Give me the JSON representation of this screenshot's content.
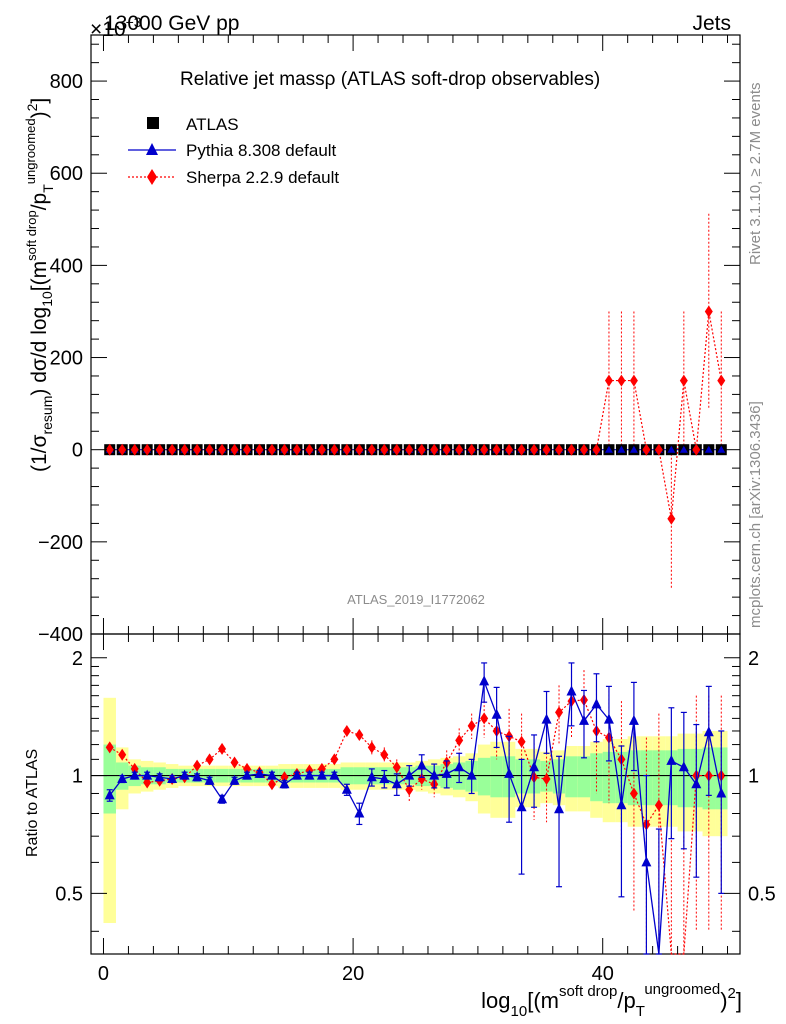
{
  "header": {
    "energy_label": "13000 GeV pp",
    "process_label": "Jets",
    "exponent_label": "×10",
    "exponent_power": "−3"
  },
  "side": {
    "rivet_label": "Rivet 3.1.10, ≥ 2.7M events",
    "mcplots_label": "mcplots.cern.ch [arXiv:1306.3436]"
  },
  "chart_data": {
    "type": "scatter",
    "title": "Relative jet massρ (ATLAS soft-drop observables)",
    "analysis_id": "ATLAS_2019_I1772062",
    "ylabel": "(1/σresum) dσ/d log10[(m soft drop/pT ungroomed)2]",
    "ylabel_parts": {
      "a": "(1/σ",
      "b": "resum",
      "c": ") dσ/d log",
      "d": "10",
      "e": "[(m",
      "f": "soft drop",
      "g": "/p",
      "h": "T",
      "i": "ungroomed",
      "j": ")",
      "k": "2",
      "l": "]"
    },
    "xlabel_parts": {
      "a": "log",
      "b": "10",
      "c": "[(m",
      "d": "soft drop",
      "e": "/p",
      "f": "T",
      "g": "ungroomed",
      "h": ")",
      "i": "2",
      "j": "]"
    },
    "ratio_ylabel": "Ratio to ATLAS",
    "xlim": [
      -1,
      51
    ],
    "ylim": [
      -400,
      900
    ],
    "ratio_ylim": [
      0.35,
      2.3
    ],
    "xticks": [
      0,
      20,
      40
    ],
    "yticks": [
      -400,
      -200,
      0,
      200,
      400,
      600,
      800
    ],
    "ratio_yticks": [
      0.5,
      1,
      2
    ],
    "x": [
      0.5,
      1.5,
      2.5,
      3.5,
      4.5,
      5.5,
      6.5,
      7.5,
      8.5,
      9.5,
      10.5,
      11.5,
      12.5,
      13.5,
      14.5,
      15.5,
      16.5,
      17.5,
      18.5,
      19.5,
      20.5,
      21.5,
      22.5,
      23.5,
      24.5,
      25.5,
      26.5,
      27.5,
      28.5,
      29.5,
      30.5,
      31.5,
      32.5,
      33.5,
      34.5,
      35.5,
      36.5,
      37.5,
      38.5,
      39.5,
      40.5,
      41.5,
      42.5,
      43.5,
      44.5,
      45.5,
      46.5,
      47.5,
      48.5,
      49.5
    ],
    "legend": [
      {
        "name": "ATLAS",
        "marker": "square",
        "color": "#000000"
      },
      {
        "name": "Pythia 8.308 default",
        "marker": "triangle",
        "color": "#0000cc"
      },
      {
        "name": "Sherpa 2.2.9 default",
        "marker": "diamond",
        "color": "#ff0000"
      }
    ],
    "series": [
      {
        "name": "ATLAS",
        "values": [
          0,
          0,
          0,
          0,
          0,
          0,
          0,
          0,
          0,
          0,
          0,
          0,
          0,
          0,
          0,
          0,
          0,
          0,
          0,
          0,
          0,
          0,
          0,
          0,
          0,
          0,
          0,
          0,
          0,
          0,
          0,
          0,
          0,
          0,
          0,
          0,
          0,
          0,
          0,
          0,
          0,
          0,
          0,
          0,
          0,
          0,
          0,
          0,
          0,
          0
        ]
      },
      {
        "name": "Pythia 8.308 default",
        "values": [
          0,
          0,
          0,
          0,
          0,
          0,
          0,
          0,
          0,
          0,
          0,
          0,
          0,
          0,
          0,
          0,
          0,
          0,
          0,
          0,
          0,
          0,
          0,
          0,
          0,
          0,
          0,
          0,
          0,
          0,
          0,
          0,
          0,
          0,
          0,
          0,
          0,
          0,
          0,
          0,
          0,
          0,
          0,
          0,
          0,
          0,
          0,
          0,
          0,
          0
        ]
      },
      {
        "name": "Sherpa 2.2.9 default",
        "values": [
          0,
          0,
          0,
          0,
          0,
          0,
          0,
          0,
          0,
          0,
          0,
          0,
          0,
          0,
          0,
          0,
          0,
          0,
          0,
          0,
          0,
          0,
          0,
          0,
          0,
          0,
          0,
          0,
          0,
          0,
          0,
          0,
          0,
          0,
          0,
          0,
          0,
          0,
          0,
          0,
          150,
          150,
          150,
          0,
          0,
          -150,
          150,
          0,
          300,
          150
        ],
        "errors": [
          0,
          0,
          0,
          0,
          0,
          0,
          0,
          0,
          0,
          0,
          0,
          0,
          0,
          0,
          0,
          0,
          0,
          0,
          0,
          0,
          0,
          0,
          0,
          0,
          0,
          0,
          0,
          0,
          0,
          0,
          0,
          0,
          0,
          0,
          0,
          0,
          0,
          0,
          0,
          0,
          150,
          150,
          150,
          0,
          0,
          150,
          150,
          0,
          212,
          150
        ]
      }
    ],
    "ratio": {
      "band_green": [
        0.2,
        0.08,
        0.06,
        0.05,
        0.05,
        0.04,
        0.04,
        0.04,
        0.04,
        0.04,
        0.04,
        0.04,
        0.04,
        0.04,
        0.04,
        0.04,
        0.04,
        0.04,
        0.04,
        0.05,
        0.05,
        0.05,
        0.05,
        0.05,
        0.05,
        0.06,
        0.06,
        0.07,
        0.08,
        0.09,
        0.11,
        0.12,
        0.12,
        0.1,
        0.1,
        0.09,
        0.1,
        0.12,
        0.12,
        0.14,
        0.15,
        0.15,
        0.16,
        0.16,
        0.16,
        0.16,
        0.17,
        0.17,
        0.18,
        0.18
      ],
      "band_yellow": [
        0.58,
        0.18,
        0.1,
        0.09,
        0.08,
        0.07,
        0.06,
        0.06,
        0.06,
        0.06,
        0.06,
        0.06,
        0.06,
        0.06,
        0.07,
        0.07,
        0.07,
        0.07,
        0.07,
        0.08,
        0.08,
        0.08,
        0.08,
        0.08,
        0.08,
        0.09,
        0.1,
        0.11,
        0.12,
        0.14,
        0.2,
        0.22,
        0.22,
        0.17,
        0.17,
        0.15,
        0.16,
        0.19,
        0.19,
        0.22,
        0.24,
        0.24,
        0.26,
        0.26,
        0.26,
        0.26,
        0.28,
        0.28,
        0.3,
        0.3
      ],
      "pythia": [
        0.89,
        0.98,
        1.0,
        1.0,
        0.99,
        0.98,
        1.0,
        0.99,
        0.97,
        0.87,
        0.97,
        1.0,
        1.01,
        1.0,
        0.95,
        1.0,
        1.0,
        1.0,
        1.0,
        0.92,
        0.8,
        0.99,
        0.98,
        0.95,
        1.0,
        1.06,
        1.0,
        1.01,
        1.05,
        1.0,
        1.74,
        1.43,
        1.01,
        0.83,
        1.05,
        1.39,
        0.82,
        1.64,
        1.38,
        1.52,
        1.39,
        0.84,
        1.38,
        0.6,
        0.33,
        1.09,
        1.05,
        0.95,
        1.29,
        0.9
      ],
      "pythia_err": [
        0.03,
        0.02,
        0.02,
        0.02,
        0.02,
        0.02,
        0.02,
        0.02,
        0.02,
        0.02,
        0.02,
        0.02,
        0.02,
        0.02,
        0.02,
        0.02,
        0.02,
        0.02,
        0.02,
        0.03,
        0.05,
        0.05,
        0.05,
        0.06,
        0.06,
        0.07,
        0.07,
        0.08,
        0.09,
        0.1,
        0.2,
        0.25,
        0.25,
        0.27,
        0.22,
        0.25,
        0.3,
        0.3,
        0.27,
        0.3,
        0.3,
        0.35,
        0.35,
        0.4,
        0.4,
        0.4,
        0.4,
        0.4,
        0.4,
        0.4
      ],
      "sherpa": [
        1.18,
        1.13,
        1.04,
        0.96,
        0.97,
        0.98,
        0.99,
        1.06,
        1.1,
        1.17,
        1.08,
        1.04,
        1.02,
        0.95,
        0.99,
        1.01,
        1.03,
        1.04,
        1.1,
        1.3,
        1.27,
        1.18,
        1.13,
        1.05,
        0.92,
        0.98,
        0.95,
        1.08,
        1.23,
        1.34,
        1.4,
        1.3,
        1.26,
        1.22,
        0.99,
        0.98,
        1.45,
        1.55,
        1.56,
        1.3,
        1.25,
        1.1,
        0.9,
        0.75,
        0.84,
        0.1,
        0.1,
        1.0,
        1.0,
        1.0
      ],
      "sherpa_err": [
        0.02,
        0.02,
        0.02,
        0.02,
        0.02,
        0.02,
        0.02,
        0.02,
        0.02,
        0.02,
        0.02,
        0.02,
        0.02,
        0.02,
        0.02,
        0.02,
        0.02,
        0.02,
        0.02,
        0.03,
        0.04,
        0.05,
        0.05,
        0.05,
        0.06,
        0.06,
        0.07,
        0.08,
        0.09,
        0.1,
        0.15,
        0.2,
        0.22,
        0.22,
        0.22,
        0.22,
        0.25,
        0.3,
        0.3,
        0.4,
        0.4,
        0.45,
        0.45,
        0.5,
        0.6,
        0.6,
        0.6,
        0.6,
        0.6,
        0.6
      ]
    }
  }
}
